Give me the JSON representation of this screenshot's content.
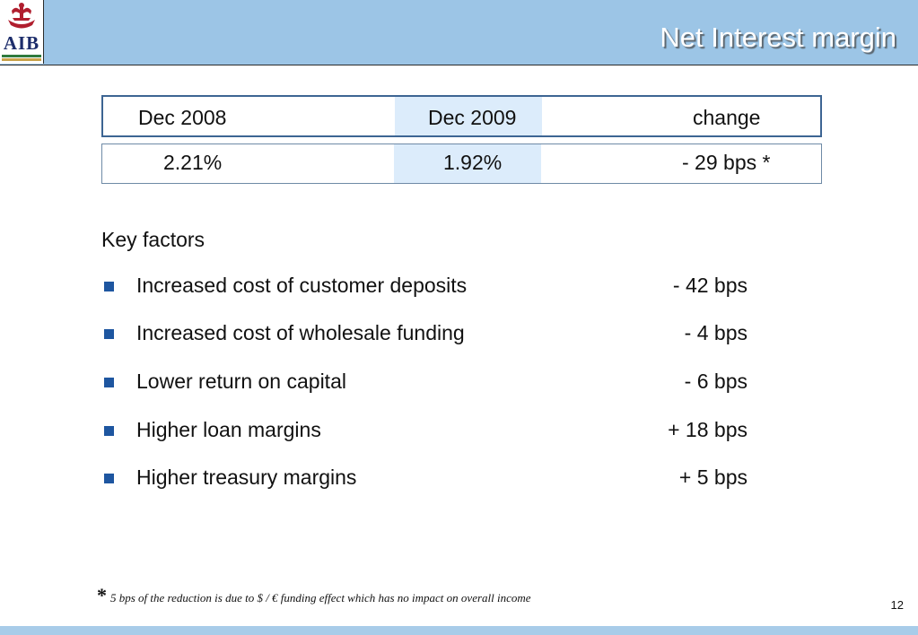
{
  "header": {
    "logo_text": "AIB",
    "title": "Net Interest margin"
  },
  "table": {
    "headers": [
      "Dec 2008",
      "Dec 2009",
      "change"
    ],
    "values": [
      "2.21%",
      "1.92%",
      "- 29 bps *"
    ]
  },
  "key_factors": {
    "title": "Key factors",
    "items": [
      {
        "label": "Increased cost of customer deposits",
        "value": "- 42 bps"
      },
      {
        "label": "Increased cost of wholesale funding",
        "value": "- 4 bps"
      },
      {
        "label": "Lower return on capital",
        "value": "- 6 bps"
      },
      {
        "label": "Higher loan margins",
        "value": "+ 18 bps"
      },
      {
        "label": "Higher treasury margins",
        "value": "+ 5 bps"
      }
    ]
  },
  "footnote": {
    "marker": "*",
    "text": "5 bps of the reduction is due to $ / € funding effect which has no impact on overall income"
  },
  "page_number": "12",
  "colors": {
    "header_band": "#9cc5e6",
    "bullet": "#1e56a0",
    "highlight_column": "#dcecfb",
    "logo_red": "#b01e2e",
    "logo_navy": "#1d2d6b"
  }
}
